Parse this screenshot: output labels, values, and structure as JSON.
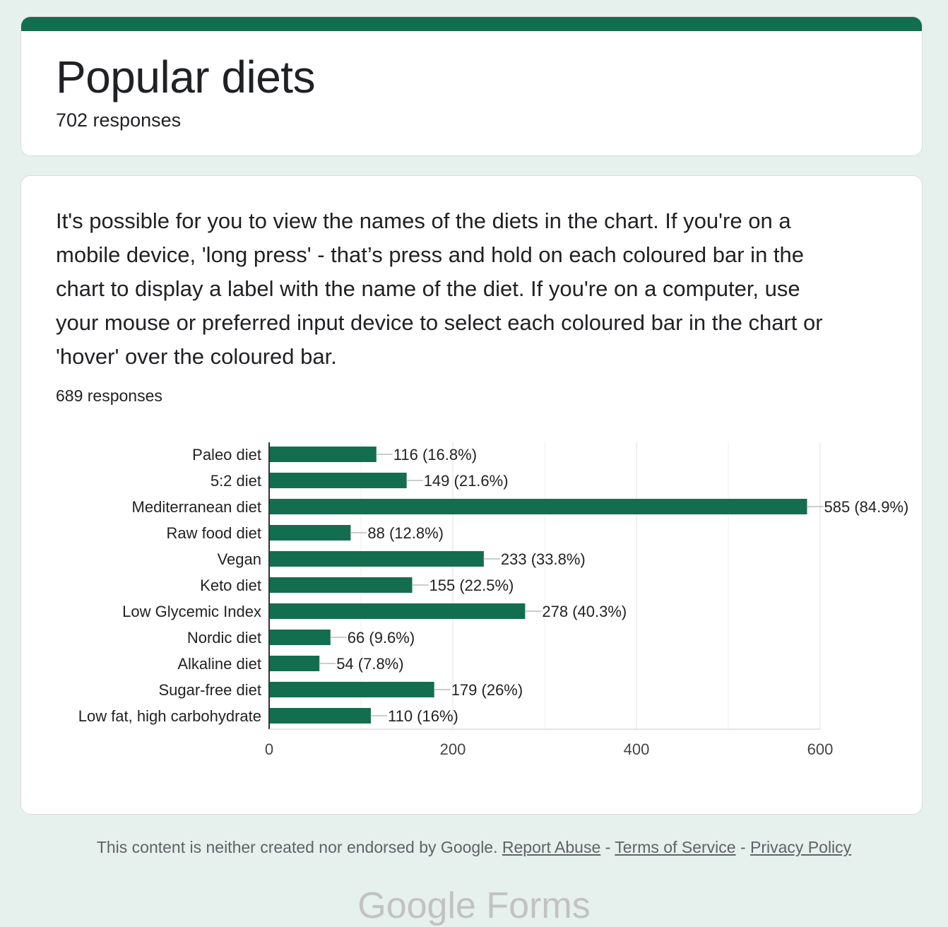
{
  "colors": {
    "accent": "#136e4f",
    "bar": "#136e4f",
    "background": "#e6f0ec"
  },
  "header": {
    "title": "Popular diets",
    "responses": "702 responses"
  },
  "question": {
    "text": "It's possible for you to view the names of the diets in the chart. If you're on a mobile device, 'long press' - that’s press and hold on each coloured bar in the chart to display a label with the name of the diet. If you're on a computer, use your mouse or preferred input device to select each coloured bar in the chart or 'hover' over the coloured bar.",
    "responses": "689 responses"
  },
  "chart_data": {
    "type": "bar",
    "orientation": "horizontal",
    "categories": [
      "Paleo diet",
      "5:2 diet",
      "Mediterranean diet",
      "Raw food diet",
      "Vegan",
      "Keto diet",
      "Low Glycemic Index",
      "Nordic diet",
      "Alkaline diet",
      "Sugar-free diet",
      "Low fat, high carbohydrate"
    ],
    "values": [
      116,
      149,
      585,
      88,
      233,
      155,
      278,
      66,
      54,
      179,
      110
    ],
    "data_labels": [
      "116 (16.8%)",
      "149 (21.6%)",
      "585 (84.9%)",
      "88 (12.8%)",
      "233 (33.8%)",
      "155 (22.5%)",
      "278 (40.3%)",
      "66 (9.6%)",
      "54 (7.8%)",
      "179 (26%)",
      "110 (16%)"
    ],
    "x_ticks": [
      "0",
      "200",
      "400",
      "600"
    ],
    "xlim": [
      0,
      600
    ],
    "grid": true
  },
  "footer": {
    "disclaimer": "This content is neither created nor endorsed by Google.",
    "separator": "-",
    "report_abuse": "Report Abuse",
    "terms": "Terms of Service",
    "privacy": "Privacy Policy"
  },
  "logo_text": "Google Forms"
}
